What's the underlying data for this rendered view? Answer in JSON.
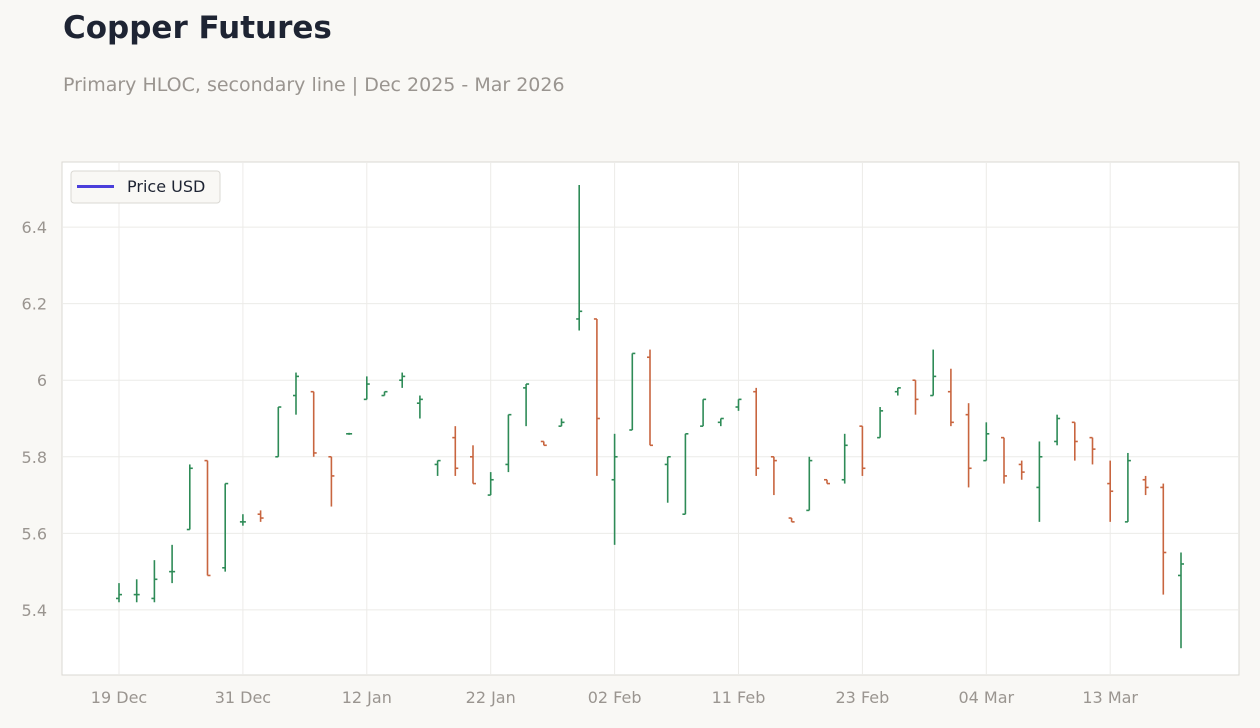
{
  "header": {
    "title": "Copper Futures",
    "subtitle": "Primary HLOC, secondary line | Dec 2025 - Mar 2026"
  },
  "colors": {
    "up": "#2e8b57",
    "down": "#c8653f",
    "legend_line": "#4b3fdb",
    "grid": "#ecebe8",
    "frame": "#dad8d3",
    "plot_bg": "#ffffff"
  },
  "chart_data": {
    "type": "ohlc",
    "title": "Copper Futures",
    "subtitle": "Primary HLOC, secondary line | Dec 2025 - Mar 2026",
    "legend": {
      "entries": [
        "Price USD"
      ],
      "position": "top-left"
    },
    "ylim": [
      5.23,
      6.57
    ],
    "y_ticks": [
      5.4,
      5.6,
      5.8,
      6.0,
      6.2,
      6.4
    ],
    "y_tick_labels": [
      "5.4",
      "5.6",
      "5.8",
      "6",
      "6.2",
      "6.4"
    ],
    "x_ticks": [
      "19 Dec",
      "31 Dec",
      "12 Jan",
      "22 Jan",
      "02 Feb",
      "11 Feb",
      "23 Feb",
      "04 Mar",
      "13 Mar"
    ],
    "grid": true,
    "candles": [
      {
        "date": "19 Dec",
        "open": 5.43,
        "high": 5.47,
        "low": 5.42,
        "close": 5.44
      },
      {
        "date": "21 Dec",
        "open": 5.44,
        "high": 5.48,
        "low": 5.42,
        "close": 5.44
      },
      {
        "date": "23 Dec",
        "open": 5.43,
        "high": 5.53,
        "low": 5.42,
        "close": 5.48
      },
      {
        "date": "25 Dec",
        "open": 5.5,
        "high": 5.57,
        "low": 5.47,
        "close": 5.5
      },
      {
        "date": "27 Dec",
        "open": 5.61,
        "high": 5.78,
        "low": 5.61,
        "close": 5.77
      },
      {
        "date": "28 Dec",
        "open": 5.79,
        "high": 5.79,
        "low": 5.49,
        "close": 5.49
      },
      {
        "date": "30 Dec",
        "open": 5.51,
        "high": 5.73,
        "low": 5.5,
        "close": 5.73
      },
      {
        "date": "31 Dec",
        "open": 5.63,
        "high": 5.65,
        "low": 5.62,
        "close": 5.63
      },
      {
        "date": "02 Jan",
        "open": 5.65,
        "high": 5.66,
        "low": 5.63,
        "close": 5.64
      },
      {
        "date": "04 Jan",
        "open": 5.8,
        "high": 5.93,
        "low": 5.8,
        "close": 5.93
      },
      {
        "date": "06 Jan",
        "open": 5.96,
        "high": 6.02,
        "low": 5.91,
        "close": 6.01
      },
      {
        "date": "08 Jan",
        "open": 5.97,
        "high": 5.97,
        "low": 5.8,
        "close": 5.81
      },
      {
        "date": "09 Jan",
        "open": 5.8,
        "high": 5.8,
        "low": 5.67,
        "close": 5.75
      },
      {
        "date": "11 Jan",
        "open": 5.86,
        "high": 5.86,
        "low": 5.86,
        "close": 5.86
      },
      {
        "date": "13 Jan",
        "open": 5.95,
        "high": 6.01,
        "low": 5.95,
        "close": 5.99
      },
      {
        "date": "15 Jan",
        "open": 5.96,
        "high": 5.97,
        "low": 5.96,
        "close": 5.97
      },
      {
        "date": "17 Jan",
        "open": 6.0,
        "high": 6.02,
        "low": 5.98,
        "close": 6.01
      },
      {
        "date": "18 Jan",
        "open": 5.94,
        "high": 5.96,
        "low": 5.9,
        "close": 5.95
      },
      {
        "date": "20 Jan",
        "open": 5.78,
        "high": 5.79,
        "low": 5.75,
        "close": 5.79
      },
      {
        "date": "22 Jan",
        "open": 5.85,
        "high": 5.88,
        "low": 5.75,
        "close": 5.77
      },
      {
        "date": "23 Jan",
        "open": 5.8,
        "high": 5.83,
        "low": 5.73,
        "close": 5.73
      },
      {
        "date": "25 Jan",
        "open": 5.7,
        "high": 5.76,
        "low": 5.7,
        "close": 5.74
      },
      {
        "date": "27 Jan",
        "open": 5.78,
        "high": 5.91,
        "low": 5.76,
        "close": 5.91
      },
      {
        "date": "29 Jan",
        "open": 5.98,
        "high": 5.99,
        "low": 5.88,
        "close": 5.99
      },
      {
        "date": "30 Jan",
        "open": 5.84,
        "high": 5.84,
        "low": 5.83,
        "close": 5.83
      },
      {
        "date": "01 Feb",
        "open": 5.88,
        "high": 5.9,
        "low": 5.88,
        "close": 5.89
      },
      {
        "date": "03 Feb",
        "open": 6.16,
        "high": 6.51,
        "low": 6.13,
        "close": 6.18
      },
      {
        "date": "05 Feb",
        "open": 6.16,
        "high": 6.16,
        "low": 5.75,
        "close": 5.9
      },
      {
        "date": "06 Feb",
        "open": 5.74,
        "high": 5.86,
        "low": 5.57,
        "close": 5.8
      },
      {
        "date": "08 Feb",
        "open": 5.87,
        "high": 6.07,
        "low": 5.87,
        "close": 6.07
      },
      {
        "date": "10 Feb",
        "open": 6.06,
        "high": 6.08,
        "low": 5.83,
        "close": 5.83
      },
      {
        "date": "11 Feb",
        "open": 5.78,
        "high": 5.8,
        "low": 5.68,
        "close": 5.8
      },
      {
        "date": "13 Feb",
        "open": 5.65,
        "high": 5.86,
        "low": 5.65,
        "close": 5.86
      },
      {
        "date": "15 Feb",
        "open": 5.88,
        "high": 5.95,
        "low": 5.88,
        "close": 5.95
      },
      {
        "date": "16 Feb",
        "open": 5.89,
        "high": 5.9,
        "low": 5.88,
        "close": 5.9
      },
      {
        "date": "18 Feb",
        "open": 5.93,
        "high": 5.95,
        "low": 5.92,
        "close": 5.95
      },
      {
        "date": "20 Feb",
        "open": 5.97,
        "high": 5.98,
        "low": 5.75,
        "close": 5.77
      },
      {
        "date": "22 Feb",
        "open": 5.8,
        "high": 5.8,
        "low": 5.7,
        "close": 5.79
      },
      {
        "date": "23 Feb",
        "open": 5.64,
        "high": 5.64,
        "low": 5.63,
        "close": 5.63
      },
      {
        "date": "25 Feb",
        "open": 5.66,
        "high": 5.8,
        "low": 5.66,
        "close": 5.79
      },
      {
        "date": "27 Feb",
        "open": 5.74,
        "high": 5.74,
        "low": 5.73,
        "close": 5.73
      },
      {
        "date": "28 Feb",
        "open": 5.74,
        "high": 5.86,
        "low": 5.73,
        "close": 5.83
      },
      {
        "date": "02 Mar",
        "open": 5.88,
        "high": 5.88,
        "low": 5.75,
        "close": 5.77
      },
      {
        "date": "04 Mar",
        "open": 5.85,
        "high": 5.93,
        "low": 5.85,
        "close": 5.92
      },
      {
        "date": "06 Mar",
        "open": 5.97,
        "high": 5.98,
        "low": 5.96,
        "close": 5.98
      },
      {
        "date": "07 Mar",
        "open": 6.0,
        "high": 6.0,
        "low": 5.91,
        "close": 5.95
      },
      {
        "date": "09 Mar",
        "open": 5.96,
        "high": 6.08,
        "low": 5.96,
        "close": 6.01
      },
      {
        "date": "11 Mar",
        "open": 5.97,
        "high": 6.03,
        "low": 5.88,
        "close": 5.89
      },
      {
        "date": "13 Mar",
        "open": 5.91,
        "high": 5.94,
        "low": 5.72,
        "close": 5.77
      },
      {
        "date": "14 Mar",
        "open": 5.79,
        "high": 5.89,
        "low": 5.79,
        "close": 5.86
      },
      {
        "date": "16 Mar",
        "open": 5.85,
        "high": 5.85,
        "low": 5.73,
        "close": 5.75
      },
      {
        "date": "18 Mar",
        "open": 5.78,
        "high": 5.79,
        "low": 5.74,
        "close": 5.76
      },
      {
        "date": "20 Mar",
        "open": 5.72,
        "high": 5.84,
        "low": 5.63,
        "close": 5.8
      },
      {
        "date": "21 Mar",
        "open": 5.84,
        "high": 5.91,
        "low": 5.83,
        "close": 5.9
      },
      {
        "date": "23 Mar",
        "open": 5.89,
        "high": 5.89,
        "low": 5.79,
        "close": 5.84
      },
      {
        "date": "25 Mar",
        "open": 5.85,
        "high": 5.85,
        "low": 5.78,
        "close": 5.82
      },
      {
        "date": "27 Mar",
        "open": 5.73,
        "high": 5.79,
        "low": 5.63,
        "close": 5.71
      },
      {
        "date": "28 Mar",
        "open": 5.63,
        "high": 5.81,
        "low": 5.63,
        "close": 5.79
      },
      {
        "date": "30 Mar",
        "open": 5.74,
        "high": 5.75,
        "low": 5.7,
        "close": 5.72
      },
      {
        "date": "01 Apr",
        "open": 5.72,
        "high": 5.73,
        "low": 5.44,
        "close": 5.55
      },
      {
        "date": "03 Apr",
        "open": 5.49,
        "high": 5.55,
        "low": 5.3,
        "close": 5.52
      }
    ]
  }
}
